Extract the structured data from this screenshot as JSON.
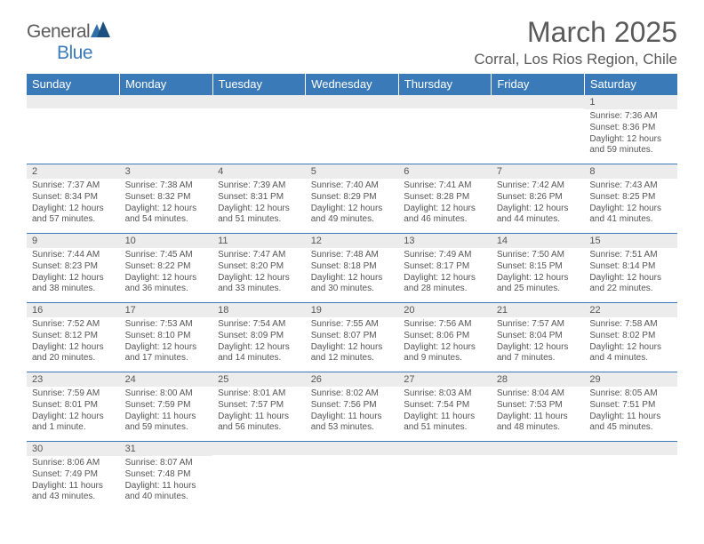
{
  "logo": {
    "general": "General",
    "blue": "Blue"
  },
  "header": {
    "month_title": "March 2025",
    "location": "Corral, Los Rios Region, Chile"
  },
  "colors": {
    "header_bg": "#3a7ab8",
    "header_text": "#ffffff",
    "daynum_bg": "#ececec",
    "cell_border": "#3a7ab8",
    "body_text": "#555555"
  },
  "daynames": [
    "Sunday",
    "Monday",
    "Tuesday",
    "Wednesday",
    "Thursday",
    "Friday",
    "Saturday"
  ],
  "weeks": [
    [
      null,
      null,
      null,
      null,
      null,
      null,
      {
        "n": "1",
        "sr": "7:36 AM",
        "ss": "8:36 PM",
        "dl": "12 hours and 59 minutes."
      }
    ],
    [
      {
        "n": "2",
        "sr": "7:37 AM",
        "ss": "8:34 PM",
        "dl": "12 hours and 57 minutes."
      },
      {
        "n": "3",
        "sr": "7:38 AM",
        "ss": "8:32 PM",
        "dl": "12 hours and 54 minutes."
      },
      {
        "n": "4",
        "sr": "7:39 AM",
        "ss": "8:31 PM",
        "dl": "12 hours and 51 minutes."
      },
      {
        "n": "5",
        "sr": "7:40 AM",
        "ss": "8:29 PM",
        "dl": "12 hours and 49 minutes."
      },
      {
        "n": "6",
        "sr": "7:41 AM",
        "ss": "8:28 PM",
        "dl": "12 hours and 46 minutes."
      },
      {
        "n": "7",
        "sr": "7:42 AM",
        "ss": "8:26 PM",
        "dl": "12 hours and 44 minutes."
      },
      {
        "n": "8",
        "sr": "7:43 AM",
        "ss": "8:25 PM",
        "dl": "12 hours and 41 minutes."
      }
    ],
    [
      {
        "n": "9",
        "sr": "7:44 AM",
        "ss": "8:23 PM",
        "dl": "12 hours and 38 minutes."
      },
      {
        "n": "10",
        "sr": "7:45 AM",
        "ss": "8:22 PM",
        "dl": "12 hours and 36 minutes."
      },
      {
        "n": "11",
        "sr": "7:47 AM",
        "ss": "8:20 PM",
        "dl": "12 hours and 33 minutes."
      },
      {
        "n": "12",
        "sr": "7:48 AM",
        "ss": "8:18 PM",
        "dl": "12 hours and 30 minutes."
      },
      {
        "n": "13",
        "sr": "7:49 AM",
        "ss": "8:17 PM",
        "dl": "12 hours and 28 minutes."
      },
      {
        "n": "14",
        "sr": "7:50 AM",
        "ss": "8:15 PM",
        "dl": "12 hours and 25 minutes."
      },
      {
        "n": "15",
        "sr": "7:51 AM",
        "ss": "8:14 PM",
        "dl": "12 hours and 22 minutes."
      }
    ],
    [
      {
        "n": "16",
        "sr": "7:52 AM",
        "ss": "8:12 PM",
        "dl": "12 hours and 20 minutes."
      },
      {
        "n": "17",
        "sr": "7:53 AM",
        "ss": "8:10 PM",
        "dl": "12 hours and 17 minutes."
      },
      {
        "n": "18",
        "sr": "7:54 AM",
        "ss": "8:09 PM",
        "dl": "12 hours and 14 minutes."
      },
      {
        "n": "19",
        "sr": "7:55 AM",
        "ss": "8:07 PM",
        "dl": "12 hours and 12 minutes."
      },
      {
        "n": "20",
        "sr": "7:56 AM",
        "ss": "8:06 PM",
        "dl": "12 hours and 9 minutes."
      },
      {
        "n": "21",
        "sr": "7:57 AM",
        "ss": "8:04 PM",
        "dl": "12 hours and 7 minutes."
      },
      {
        "n": "22",
        "sr": "7:58 AM",
        "ss": "8:02 PM",
        "dl": "12 hours and 4 minutes."
      }
    ],
    [
      {
        "n": "23",
        "sr": "7:59 AM",
        "ss": "8:01 PM",
        "dl": "12 hours and 1 minute."
      },
      {
        "n": "24",
        "sr": "8:00 AM",
        "ss": "7:59 PM",
        "dl": "11 hours and 59 minutes."
      },
      {
        "n": "25",
        "sr": "8:01 AM",
        "ss": "7:57 PM",
        "dl": "11 hours and 56 minutes."
      },
      {
        "n": "26",
        "sr": "8:02 AM",
        "ss": "7:56 PM",
        "dl": "11 hours and 53 minutes."
      },
      {
        "n": "27",
        "sr": "8:03 AM",
        "ss": "7:54 PM",
        "dl": "11 hours and 51 minutes."
      },
      {
        "n": "28",
        "sr": "8:04 AM",
        "ss": "7:53 PM",
        "dl": "11 hours and 48 minutes."
      },
      {
        "n": "29",
        "sr": "8:05 AM",
        "ss": "7:51 PM",
        "dl": "11 hours and 45 minutes."
      }
    ],
    [
      {
        "n": "30",
        "sr": "8:06 AM",
        "ss": "7:49 PM",
        "dl": "11 hours and 43 minutes."
      },
      {
        "n": "31",
        "sr": "8:07 AM",
        "ss": "7:48 PM",
        "dl": "11 hours and 40 minutes."
      },
      null,
      null,
      null,
      null,
      null
    ]
  ],
  "labels": {
    "sunrise": "Sunrise:",
    "sunset": "Sunset:",
    "daylight": "Daylight:"
  }
}
